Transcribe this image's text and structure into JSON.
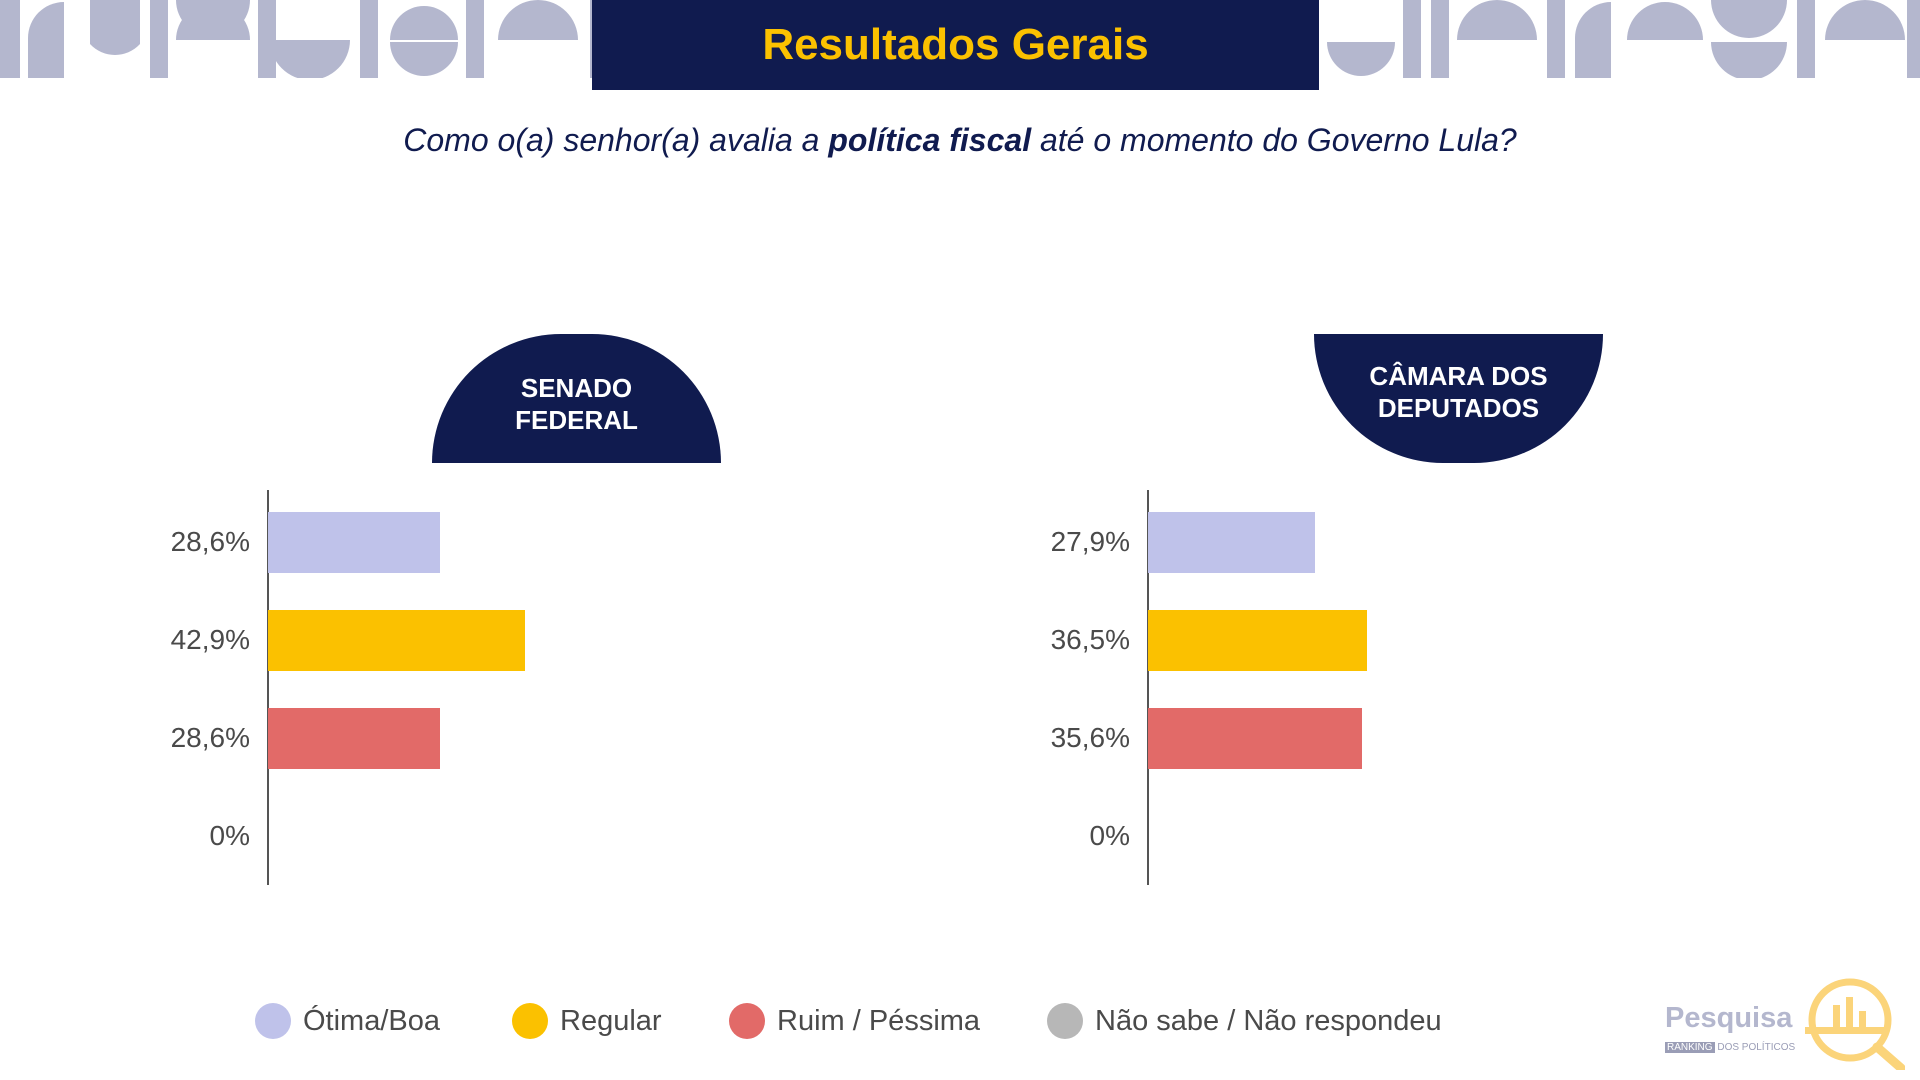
{
  "title": "Resultados Gerais",
  "question": {
    "before": "Como o(a) senhor(a) avalia a ",
    "bold": "política fiscal",
    "after": " até o momento do Governo Lula?"
  },
  "colors": {
    "navy": "#101b4f",
    "gold": "#fbc100",
    "otima_boa": "#bfc2ea",
    "regular": "#fbc100",
    "ruim_pessima": "#e26a68",
    "nao_sabe": "#b7b7b7"
  },
  "chart_data": [
    {
      "type": "bar",
      "orientation": "horizontal",
      "title": "SENADO FEDERAL",
      "categories": [
        "Ótima/Boa",
        "Regular",
        "Ruim / Péssima",
        "Não sabe / Não respondeu"
      ],
      "values": [
        28.6,
        42.9,
        28.6,
        0
      ],
      "labels": [
        "28,6%",
        "42,9%",
        "28,6%",
        "0%"
      ],
      "xlim": [
        0,
        100
      ],
      "grid": false,
      "legend": "bottom"
    },
    {
      "type": "bar",
      "orientation": "horizontal",
      "title": "CÂMARA DOS DEPUTADOS",
      "categories": [
        "Ótima/Boa",
        "Regular",
        "Ruim / Péssima",
        "Não sabe / Não respondeu"
      ],
      "values": [
        27.9,
        36.5,
        35.6,
        0
      ],
      "labels": [
        "27,9%",
        "36,5%",
        "35,6%",
        "0%"
      ],
      "xlim": [
        0,
        100
      ],
      "grid": false,
      "legend": "bottom"
    }
  ],
  "panels": {
    "senado": {
      "line1": "SENADO",
      "line2": "FEDERAL"
    },
    "camara": {
      "line1": "CÂMARA DOS",
      "line2": "DEPUTADOS"
    }
  },
  "legend": {
    "items": [
      {
        "label": "Ótima/Boa",
        "color": "#bfc2ea"
      },
      {
        "label": "Regular",
        "color": "#fbc100"
      },
      {
        "label": "Ruim / Péssima",
        "color": "#e26a68"
      },
      {
        "label": "Não sabe / Não respondeu",
        "color": "#b7b7b7"
      }
    ]
  },
  "logo": {
    "name": "Pesquisa",
    "sub_badge": "RANKING",
    "sub_text": "DOS POLÍTICOS",
    "icon": "magnifier-chart-icon"
  }
}
